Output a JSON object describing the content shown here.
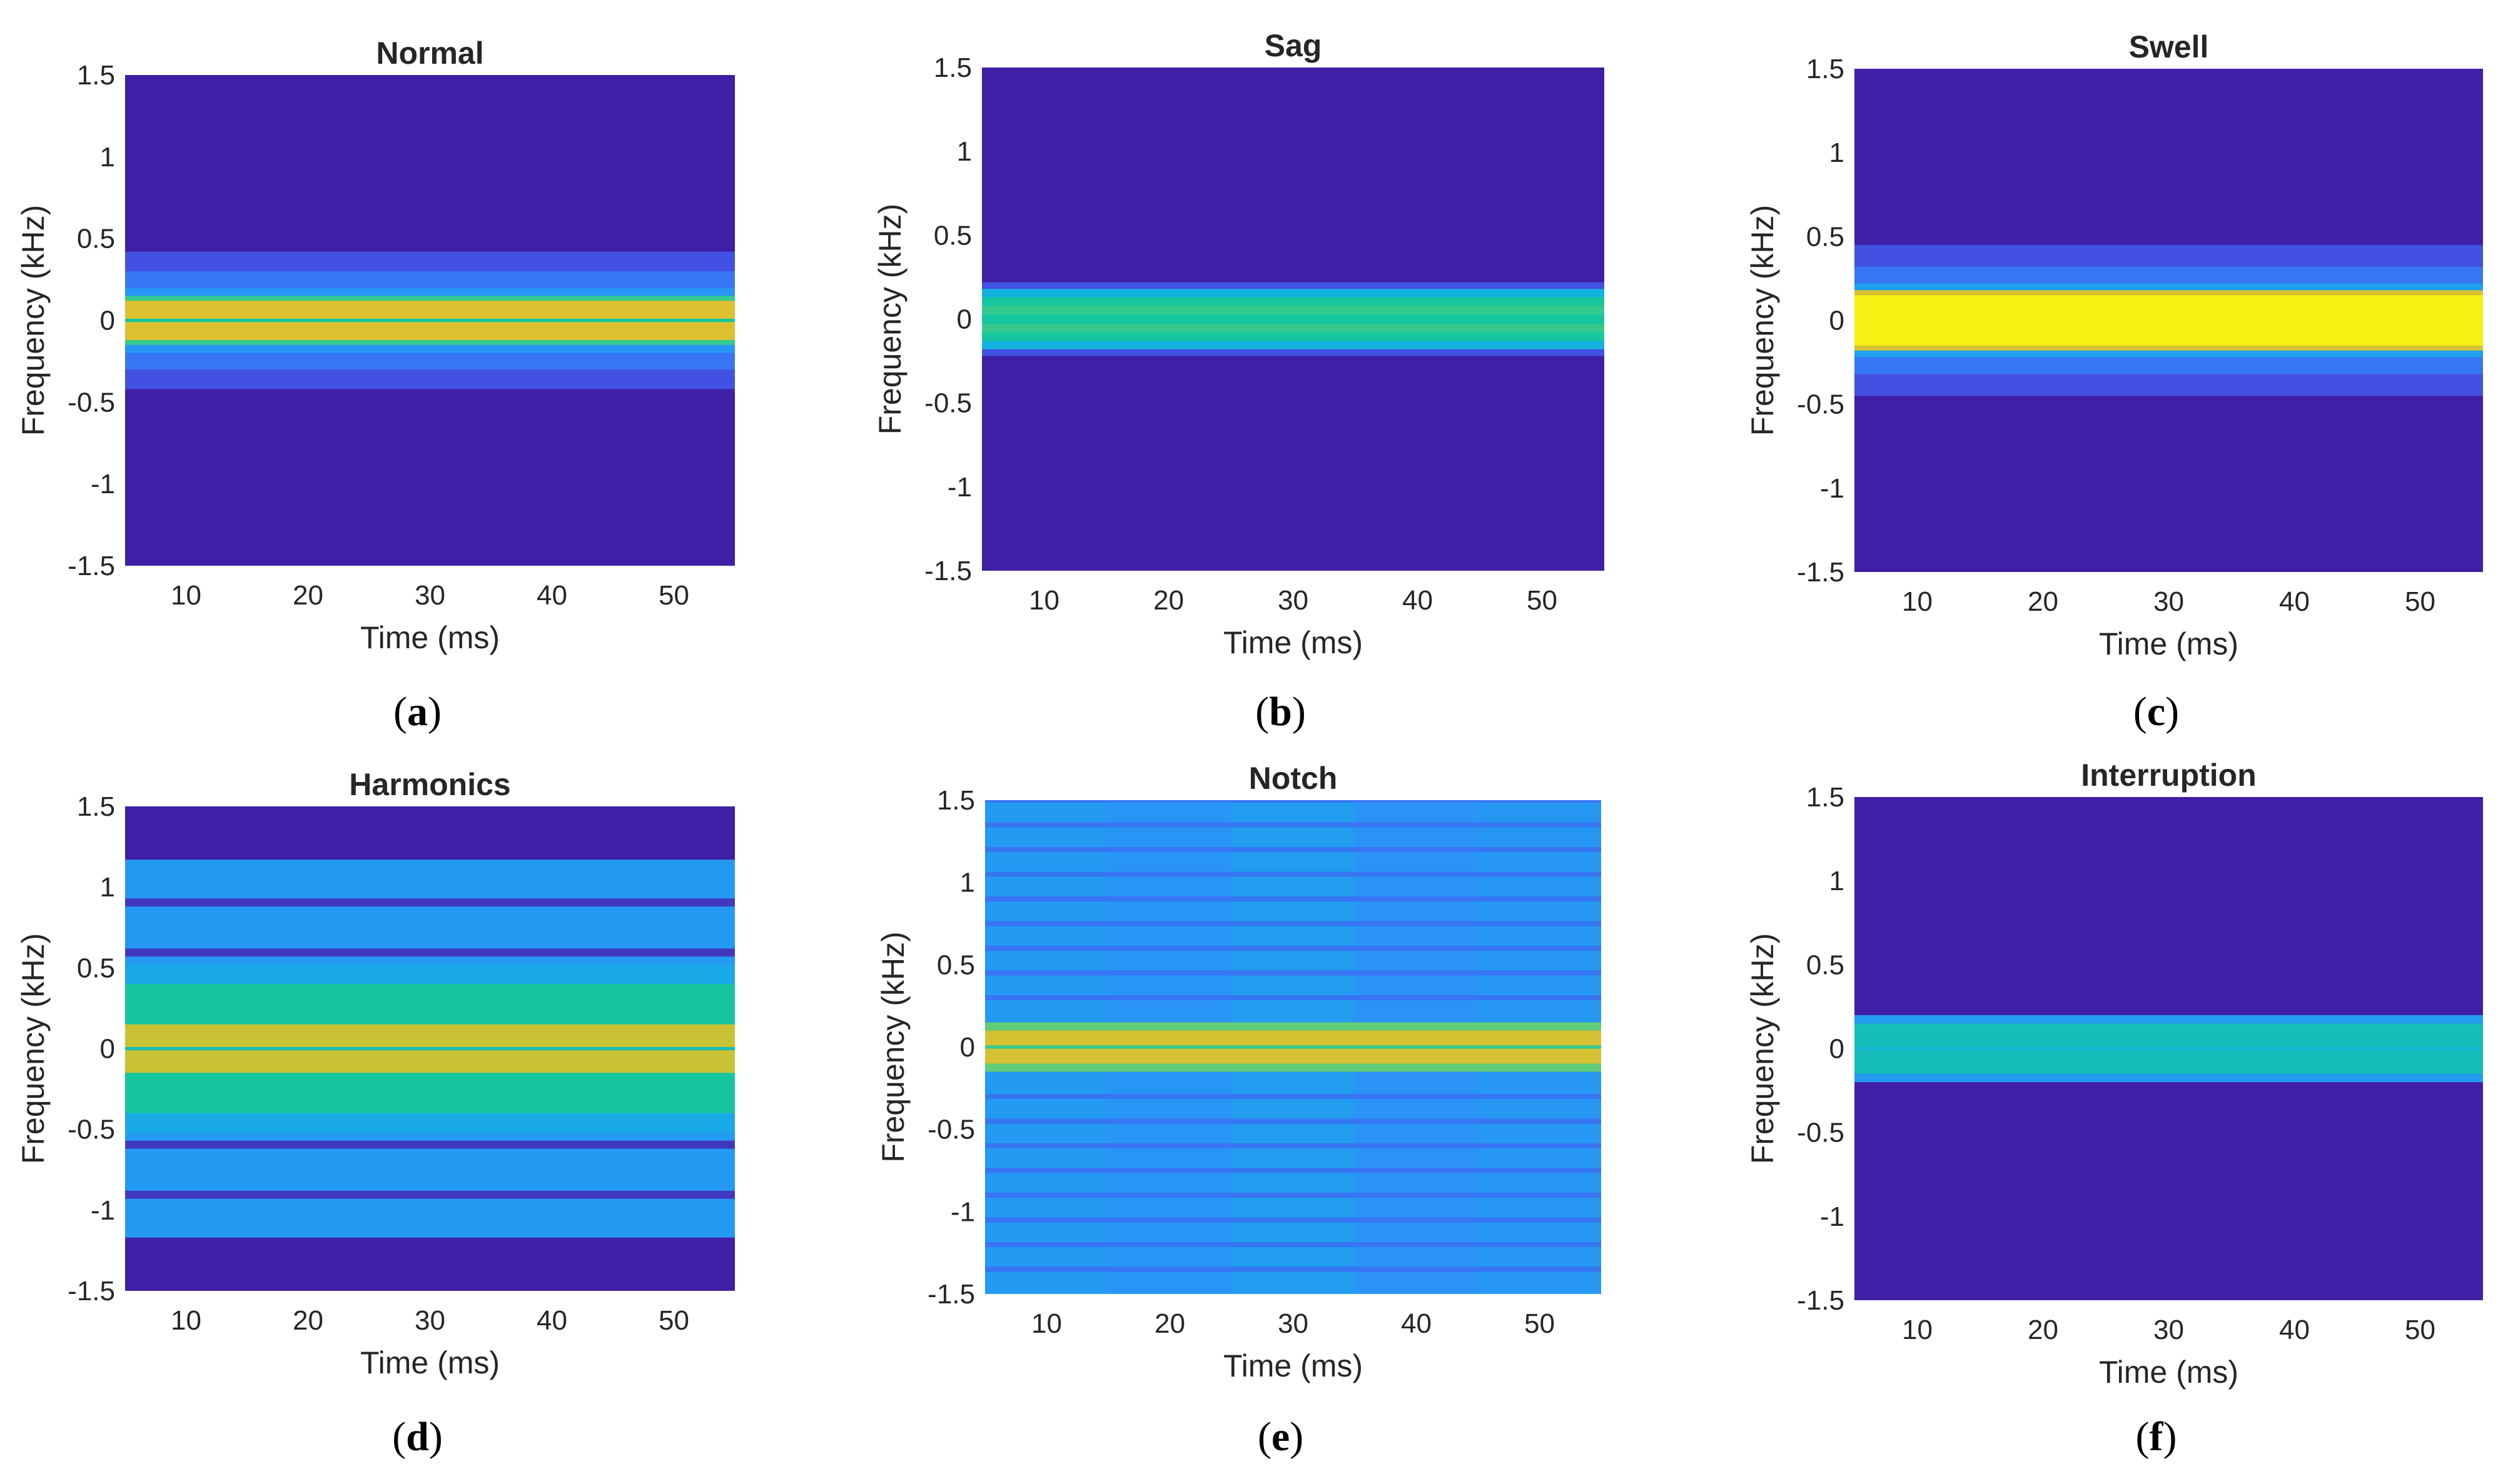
{
  "colors": {
    "background_level": "#3f1fa5",
    "colormap": [
      "#3e26a8",
      "#4353e5",
      "#2f8cfc",
      "#13b0e2",
      "#16c69f",
      "#64cd74",
      "#c9c234",
      "#fbbe2b",
      "#f8fa0d"
    ]
  },
  "chart_data": [
    {
      "panel": "a",
      "type": "heatmap",
      "title": "Normal",
      "caption_letter": "a",
      "xlabel": "Time (ms)",
      "ylabel": "Frequency (kHz)",
      "xlim": [
        5,
        55
      ],
      "ylim": [
        -1.5,
        1.5
      ],
      "xticks": [
        "10",
        "20",
        "30",
        "40",
        "50"
      ],
      "yticks": [
        "1.5",
        "1",
        "0.5",
        "0",
        "-0.5",
        "-1",
        "-1.5"
      ],
      "bands": [
        {
          "from": -0.42,
          "to": 0.42,
          "level": 0.12
        },
        {
          "from": -0.3,
          "to": 0.3,
          "level": 0.2
        },
        {
          "from": -0.2,
          "to": 0.2,
          "level": 0.28
        },
        {
          "from": -0.15,
          "to": 0.15,
          "level": 0.55
        },
        {
          "from": -0.12,
          "to": 0.12,
          "level": 0.8
        },
        {
          "from": -0.01,
          "to": 0.01,
          "level": 0.5
        }
      ]
    },
    {
      "panel": "b",
      "type": "heatmap",
      "title": "Sag",
      "caption_letter": "b",
      "xlabel": "Time (ms)",
      "ylabel": "Frequency (kHz)",
      "xlim": [
        5,
        55
      ],
      "ylim": [
        -1.5,
        1.5
      ],
      "xticks": [
        "10",
        "20",
        "30",
        "40",
        "50"
      ],
      "yticks": [
        "1.5",
        "1",
        "0.5",
        "0",
        "-0.5",
        "-1",
        "-1.5"
      ],
      "bands": [
        {
          "from": -0.22,
          "to": 0.22,
          "level": 0.12
        },
        {
          "from": -0.18,
          "to": 0.18,
          "level": 0.38
        },
        {
          "from": -0.13,
          "to": 0.13,
          "level": 0.5
        },
        {
          "from": -0.08,
          "to": -0.03,
          "level": 0.55
        },
        {
          "from": 0.03,
          "to": 0.08,
          "level": 0.55
        }
      ]
    },
    {
      "panel": "c",
      "type": "heatmap",
      "title": "Swell",
      "caption_letter": "c",
      "xlabel": "Time (ms)",
      "ylabel": "Frequency (kHz)",
      "xlim": [
        5,
        55
      ],
      "ylim": [
        -1.5,
        1.5
      ],
      "xticks": [
        "10",
        "20",
        "30",
        "40",
        "50"
      ],
      "yticks": [
        "1.5",
        "1",
        "0.5",
        "0",
        "-0.5",
        "-1",
        "-1.5"
      ],
      "bands": [
        {
          "from": -0.45,
          "to": 0.45,
          "level": 0.12
        },
        {
          "from": -0.32,
          "to": 0.32,
          "level": 0.2
        },
        {
          "from": -0.22,
          "to": 0.22,
          "level": 0.32
        },
        {
          "from": -0.18,
          "to": 0.18,
          "level": 0.78
        },
        {
          "from": -0.15,
          "to": 0.15,
          "level": 0.98
        }
      ]
    },
    {
      "panel": "d",
      "type": "heatmap",
      "title": "Harmonics",
      "caption_letter": "d",
      "xlabel": "Time (ms)",
      "ylabel": "Frequency (kHz)",
      "xlim": [
        5,
        55
      ],
      "ylim": [
        -1.5,
        1.5
      ],
      "xticks": [
        "10",
        "20",
        "30",
        "40",
        "50"
      ],
      "yticks": [
        "1.5",
        "1",
        "0.5",
        "0",
        "-0.5",
        "-1",
        "-1.5"
      ],
      "bands": [
        {
          "from": -1.17,
          "to": 1.17,
          "level": 0.3
        },
        {
          "from": 0.88,
          "to": 0.93,
          "level": 0.05
        },
        {
          "from": -0.93,
          "to": -0.88,
          "level": 0.05
        },
        {
          "from": 0.57,
          "to": 0.62,
          "level": 0.05
        },
        {
          "from": -0.62,
          "to": -0.57,
          "level": 0.05
        },
        {
          "from": -0.52,
          "to": 0.52,
          "level": 0.35
        },
        {
          "from": -0.4,
          "to": 0.4,
          "level": 0.5
        },
        {
          "from": -0.15,
          "to": 0.15,
          "level": 0.75
        },
        {
          "from": -0.01,
          "to": 0.01,
          "level": 0.45
        }
      ]
    },
    {
      "panel": "e",
      "type": "heatmap",
      "title": "Notch",
      "caption_letter": "e",
      "xlabel": "Time (ms)",
      "ylabel": "Frequency (kHz)",
      "xlim": [
        5,
        55
      ],
      "ylim": [
        -1.5,
        1.5
      ],
      "xticks": [
        "10",
        "20",
        "30",
        "40",
        "50"
      ],
      "yticks": [
        "1.5",
        "1",
        "0.5",
        "0",
        "-0.5",
        "-1",
        "-1.5"
      ],
      "column_levels": [
        0.3,
        0.28,
        0.31,
        0.27,
        0.29
      ],
      "stripe_spacing": 0.15,
      "stripe_level": 0.2,
      "bands": [
        {
          "from": -1.5,
          "to": 1.5,
          "level": 0.3
        },
        {
          "from": -0.15,
          "to": 0.15,
          "level": 0.62
        },
        {
          "from": -0.1,
          "to": 0.1,
          "level": 0.78
        },
        {
          "from": -0.01,
          "to": 0.01,
          "level": 0.55
        }
      ]
    },
    {
      "panel": "f",
      "type": "heatmap",
      "title": "Interruption",
      "caption_letter": "f",
      "xlabel": "Time (ms)",
      "ylabel": "Frequency (kHz)",
      "xlim": [
        5,
        55
      ],
      "ylim": [
        -1.5,
        1.5
      ],
      "xticks": [
        "10",
        "20",
        "30",
        "40",
        "50"
      ],
      "yticks": [
        "1.5",
        "1",
        "0.5",
        "0",
        "-0.5",
        "-1",
        "-1.5"
      ],
      "bands": [
        {
          "from": -0.2,
          "to": 0.2,
          "level": 0.3
        },
        {
          "from": -0.15,
          "to": 0.15,
          "level": 0.45
        },
        {
          "from": -0.01,
          "to": 0.01,
          "level": 0.4
        }
      ]
    }
  ]
}
